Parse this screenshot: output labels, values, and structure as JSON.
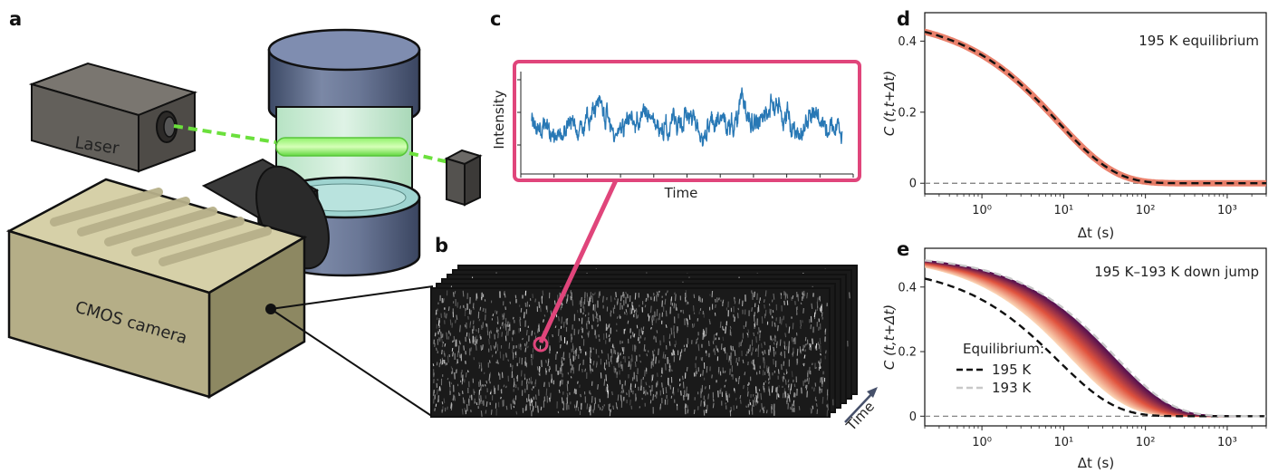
{
  "panels": {
    "a": {
      "label": "a",
      "laser_label": "Laser",
      "camera_label": "CMOS camera"
    },
    "b": {
      "label": "b",
      "time_label": "Time"
    },
    "c": {
      "label": "c",
      "ylabel": "Intensity",
      "xlabel": "Time",
      "frame_color": "#e0457b",
      "trace_color": "#2878b5"
    },
    "d": {
      "label": "d"
    },
    "e": {
      "label": "e"
    }
  },
  "chart_data": [
    {
      "id": "d",
      "type": "line",
      "annotation": "195 K equilibrium",
      "xlabel": "Δt (s)",
      "ylabel": "C (t,t+Δt)",
      "xscale": "log",
      "xlim": [
        0.2,
        3000
      ],
      "ylim": [
        -0.03,
        0.48
      ],
      "xticks": [
        {
          "value": 1,
          "label": "10⁰"
        },
        {
          "value": 10,
          "label": "10¹"
        },
        {
          "value": 100,
          "label": "10²"
        },
        {
          "value": 1000,
          "label": "10³"
        }
      ],
      "yticks": [
        {
          "value": 0,
          "label": "0"
        },
        {
          "value": 0.2,
          "label": "0.2"
        },
        {
          "value": 0.4,
          "label": "0.4"
        }
      ],
      "zero_line": true,
      "series": [
        {
          "style": "band",
          "color": "#e8735c",
          "tau": 8.5,
          "beta": 0.62,
          "amp": 0.47,
          "halfwidth": 0.012
        },
        {
          "style": "dashed",
          "color": "#111111",
          "tau": 8.5,
          "beta": 0.62,
          "amp": 0.47
        }
      ]
    },
    {
      "id": "e",
      "type": "line",
      "annotation": "195 K–193 K down jump",
      "xlabel": "Δt (s)",
      "ylabel": "C (t,t+Δt)",
      "xscale": "log",
      "xlim": [
        0.2,
        3000
      ],
      "ylim": [
        -0.03,
        0.52
      ],
      "xticks": [
        {
          "value": 1,
          "label": "10⁰"
        },
        {
          "value": 10,
          "label": "10¹"
        },
        {
          "value": 100,
          "label": "10²"
        },
        {
          "value": 1000,
          "label": "10³"
        }
      ],
      "yticks": [
        {
          "value": 0,
          "label": "0"
        },
        {
          "value": 0.2,
          "label": "0.2"
        },
        {
          "value": 0.4,
          "label": "0.4"
        }
      ],
      "zero_line": true,
      "aging_curves": {
        "count": 40,
        "tau_start": 12,
        "tau_end": 40,
        "beta": 0.62,
        "amp": 0.5,
        "color_start": "#fbd7b8",
        "color_mid": "#e0533e",
        "color_end": "#5a1350"
      },
      "legend": {
        "title": "Equilibrium:",
        "entries": [
          {
            "name": "195 K",
            "color": "#111111",
            "style": "dashed"
          },
          {
            "name": "193 K",
            "color": "#c8c8c8",
            "style": "dashed"
          }
        ]
      },
      "series": [
        {
          "name": "195 K",
          "style": "dashed",
          "color": "#111111",
          "tau": 8.5,
          "beta": 0.62,
          "amp": 0.47
        },
        {
          "name": "193 K",
          "style": "dashed",
          "color": "#c8c8c8",
          "tau": 43,
          "beta": 0.62,
          "amp": 0.5
        }
      ]
    }
  ]
}
